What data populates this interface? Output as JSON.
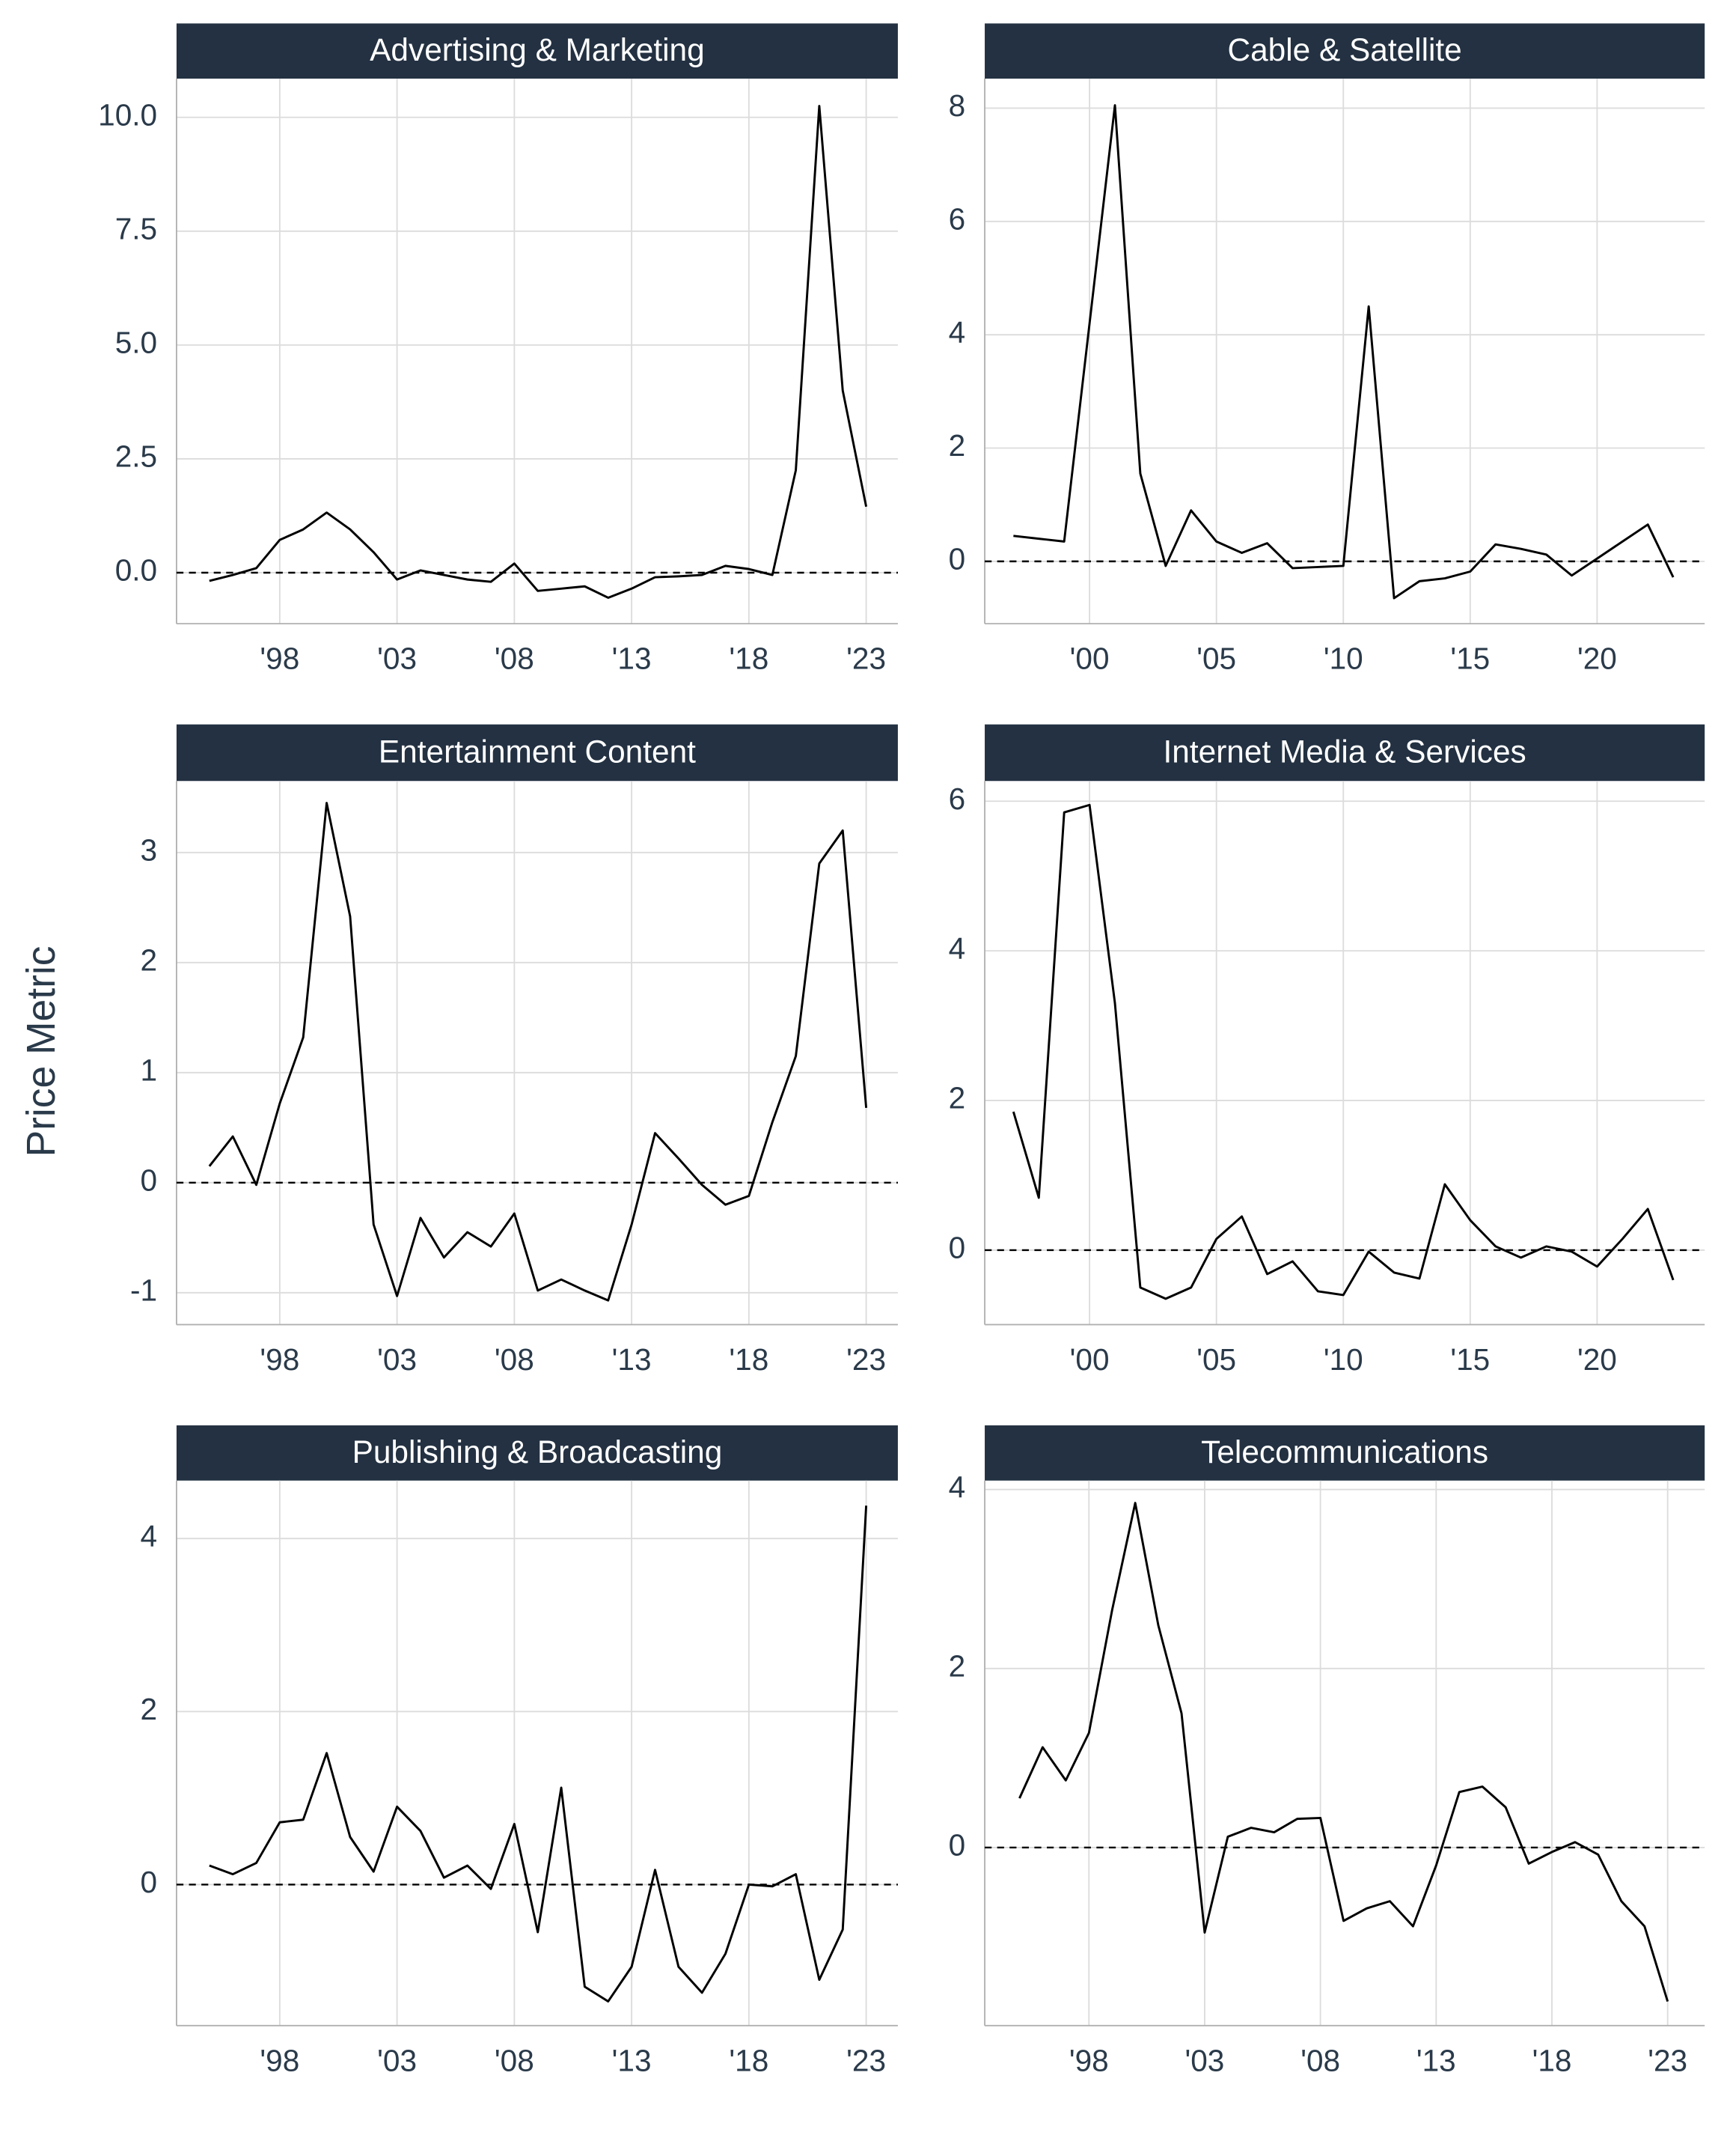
{
  "y_label": "Price Metric",
  "chart_data": [
    {
      "type": "line",
      "title": "Advertising & Marketing",
      "color": "#000000",
      "grid": true,
      "reference_line": 0,
      "x": [
        1995,
        1996,
        1997,
        1998,
        1999,
        2000,
        2001,
        2002,
        2003,
        2004,
        2005,
        2006,
        2007,
        2008,
        2009,
        2010,
        2011,
        2012,
        2013,
        2014,
        2015,
        2016,
        2017,
        2018,
        2019,
        2020,
        2021,
        2022,
        2023
      ],
      "values": [
        -0.18,
        -0.05,
        0.1,
        0.72,
        0.95,
        1.32,
        0.95,
        0.45,
        -0.15,
        0.05,
        -0.05,
        -0.15,
        -0.2,
        0.2,
        -0.4,
        -0.35,
        -0.3,
        -0.55,
        -0.35,
        -0.1,
        -0.08,
        -0.05,
        0.15,
        0.08,
        -0.05,
        2.25,
        10.25,
        4.0,
        1.45
      ],
      "xlim": [
        1993.6,
        2024.35
      ],
      "ylim": [
        -1.12,
        10.85
      ],
      "xticks": [
        {
          "value": 1998,
          "label": "'98"
        },
        {
          "value": 2003,
          "label": "'03"
        },
        {
          "value": 2008,
          "label": "'08"
        },
        {
          "value": 2013,
          "label": "'13"
        },
        {
          "value": 2018,
          "label": "'18"
        },
        {
          "value": 2023,
          "label": "'23"
        }
      ],
      "yticks": [
        {
          "value": 0,
          "label": "0.0"
        },
        {
          "value": 2.5,
          "label": "2.5"
        },
        {
          "value": 5,
          "label": "5.0"
        },
        {
          "value": 7.5,
          "label": "7.5"
        },
        {
          "value": 10,
          "label": "10.0"
        }
      ]
    },
    {
      "type": "line",
      "title": "Cable & Satellite",
      "color": "#000000",
      "grid": true,
      "reference_line": 0,
      "x": [
        1997,
        1998,
        1999,
        2000,
        2001,
        2002,
        2003,
        2004,
        2005,
        2006,
        2007,
        2008,
        2009,
        2010,
        2011,
        2012,
        2013,
        2014,
        2015,
        2016,
        2017,
        2018,
        2019,
        2020,
        2021,
        2022,
        2023
      ],
      "values": [
        0.45,
        0.4,
        0.35,
        4.2,
        8.05,
        1.55,
        -0.08,
        0.9,
        0.35,
        0.15,
        0.32,
        -0.12,
        -0.1,
        -0.08,
        4.5,
        -0.65,
        -0.35,
        -0.3,
        -0.18,
        0.3,
        0.22,
        0.12,
        -0.25,
        0.05,
        0.35,
        0.65,
        -0.28
      ],
      "xlim": [
        1995.87,
        2024.24
      ],
      "ylim": [
        -1.1,
        8.52
      ],
      "xticks": [
        {
          "value": 2000,
          "label": "'00"
        },
        {
          "value": 2005,
          "label": "'05"
        },
        {
          "value": 2010,
          "label": "'10"
        },
        {
          "value": 2015,
          "label": "'15"
        },
        {
          "value": 2020,
          "label": "'20"
        }
      ],
      "yticks": [
        0,
        2,
        4,
        6,
        8
      ]
    },
    {
      "type": "line",
      "title": "Entertainment Content",
      "color": "#000000",
      "grid": true,
      "reference_line": 0,
      "x": [
        1995,
        1996,
        1997,
        1998,
        1999,
        2000,
        2001,
        2002,
        2003,
        2004,
        2005,
        2006,
        2007,
        2008,
        2009,
        2010,
        2011,
        2012,
        2013,
        2014,
        2015,
        2016,
        2017,
        2018,
        2019,
        2020,
        2021,
        2022,
        2023
      ],
      "values": [
        0.15,
        0.42,
        -0.02,
        0.72,
        1.32,
        3.45,
        2.42,
        -0.38,
        -1.03,
        -0.32,
        -0.68,
        -0.45,
        -0.58,
        -0.28,
        -0.98,
        -0.88,
        -0.98,
        -1.07,
        -0.38,
        0.45,
        0.22,
        -0.02,
        -0.2,
        -0.12,
        0.55,
        1.15,
        2.9,
        3.2,
        0.68
      ],
      "xlim": [
        1993.6,
        2024.35
      ],
      "ylim": [
        -1.29,
        3.65
      ],
      "xticks": [
        {
          "value": 1998,
          "label": "'98"
        },
        {
          "value": 2003,
          "label": "'03"
        },
        {
          "value": 2008,
          "label": "'08"
        },
        {
          "value": 2013,
          "label": "'13"
        },
        {
          "value": 2018,
          "label": "'18"
        },
        {
          "value": 2023,
          "label": "'23"
        }
      ],
      "yticks": [
        -1,
        0,
        1,
        2,
        3
      ]
    },
    {
      "type": "line",
      "title": "Internet Media & Services",
      "color": "#000000",
      "grid": true,
      "reference_line": 0,
      "x": [
        1997,
        1998,
        1999,
        2000,
        2001,
        2002,
        2003,
        2004,
        2005,
        2006,
        2007,
        2008,
        2009,
        2010,
        2011,
        2012,
        2013,
        2014,
        2015,
        2016,
        2017,
        2018,
        2019,
        2020,
        2021,
        2022,
        2023
      ],
      "values": [
        1.85,
        0.7,
        5.85,
        5.95,
        3.3,
        -0.5,
        -0.65,
        -0.5,
        0.15,
        0.45,
        -0.32,
        -0.15,
        -0.55,
        -0.6,
        -0.02,
        -0.3,
        -0.38,
        0.88,
        0.4,
        0.05,
        -0.1,
        0.05,
        -0.02,
        -0.22,
        0.15,
        0.55,
        -0.4
      ],
      "xlim": [
        1995.87,
        2024.24
      ],
      "ylim": [
        -0.996,
        6.27
      ],
      "xticks": [
        {
          "value": 2000,
          "label": "'00"
        },
        {
          "value": 2005,
          "label": "'05"
        },
        {
          "value": 2010,
          "label": "'10"
        },
        {
          "value": 2015,
          "label": "'15"
        },
        {
          "value": 2020,
          "label": "'20"
        }
      ],
      "yticks": [
        0,
        2,
        4,
        6
      ]
    },
    {
      "type": "line",
      "title": "Publishing & Broadcasting",
      "color": "#000000",
      "grid": true,
      "reference_line": 0,
      "x": [
        1995,
        1996,
        1997,
        1998,
        1999,
        2000,
        2001,
        2002,
        2003,
        2004,
        2005,
        2006,
        2007,
        2008,
        2009,
        2010,
        2011,
        2012,
        2013,
        2014,
        2015,
        2016,
        2017,
        2018,
        2019,
        2020,
        2021,
        2022,
        2023
      ],
      "values": [
        0.22,
        0.12,
        0.25,
        0.72,
        0.75,
        1.52,
        0.55,
        0.15,
        0.9,
        0.62,
        0.08,
        0.22,
        -0.05,
        0.7,
        -0.55,
        1.12,
        -1.18,
        -1.35,
        -0.95,
        0.17,
        -0.95,
        -1.25,
        -0.8,
        0.0,
        -0.02,
        0.12,
        -1.1,
        -0.52,
        4.38
      ],
      "xlim": [
        1993.6,
        2024.35
      ],
      "ylim": [
        -1.63,
        4.67
      ],
      "xticks": [
        {
          "value": 1998,
          "label": "'98"
        },
        {
          "value": 2003,
          "label": "'03"
        },
        {
          "value": 2008,
          "label": "'08"
        },
        {
          "value": 2013,
          "label": "'13"
        },
        {
          "value": 2018,
          "label": "'18"
        },
        {
          "value": 2023,
          "label": "'23"
        }
      ],
      "yticks": [
        0,
        2,
        4
      ]
    },
    {
      "type": "line",
      "title": "Telecommunications",
      "color": "#000000",
      "grid": true,
      "reference_line": 0,
      "x": [
        1995,
        1996,
        1997,
        1998,
        1999,
        2000,
        2001,
        2002,
        2003,
        2004,
        2005,
        2006,
        2007,
        2008,
        2009,
        2010,
        2011,
        2012,
        2013,
        2014,
        2015,
        2016,
        2017,
        2018,
        2019,
        2020,
        2021,
        2022,
        2023
      ],
      "values": [
        0.55,
        1.12,
        0.75,
        1.28,
        2.65,
        3.85,
        2.48,
        1.5,
        -0.95,
        0.12,
        0.22,
        0.17,
        0.32,
        0.33,
        -0.82,
        -0.68,
        -0.6,
        -0.88,
        -0.2,
        0.62,
        0.68,
        0.45,
        -0.18,
        -0.05,
        0.06,
        -0.08,
        -0.6,
        -0.88,
        -1.72
      ],
      "xlim": [
        1993.5,
        2024.6
      ],
      "ylim": [
        -1.99,
        4.1
      ],
      "xticks": [
        {
          "value": 1998,
          "label": "'98"
        },
        {
          "value": 2003,
          "label": "'03"
        },
        {
          "value": 2008,
          "label": "'08"
        },
        {
          "value": 2013,
          "label": "'13"
        },
        {
          "value": 2018,
          "label": "'18"
        },
        {
          "value": 2023,
          "label": "'23"
        }
      ],
      "yticks": [
        0,
        2,
        4
      ]
    }
  ]
}
